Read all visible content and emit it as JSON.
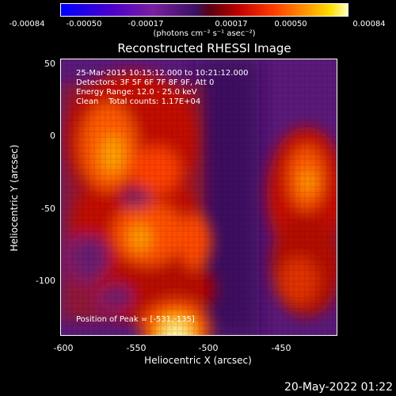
{
  "colorbar": {
    "ticks": [
      "-0.00084",
      "-0.00050",
      "-0.00017",
      "0.00017",
      "0.00050",
      "0.00084"
    ],
    "unit": "(photons cm⁻² s⁻¹ asec⁻²)"
  },
  "title": "Reconstructed RHESSI Image",
  "info": {
    "time_range": "25-Mar-2015 10:15:12.000 to 10:21:12.000",
    "detectors": "Detectors: 3F 5F 6F 7F 8F 9F, Att 0",
    "energy": "Energy Range: 12.0 - 25.0 keV",
    "clean": "Clean    Total counts: 1.17E+04"
  },
  "peak": "Position of Peak = [-531,-135]",
  "axes": {
    "xlabel": "Heliocentric X (arcsec)",
    "ylabel": "Heliocentric Y (arcsec)",
    "xticks": [
      "-600",
      "-550",
      "-500",
      "-450"
    ],
    "yticks": [
      "50",
      "0",
      "-50",
      "-100"
    ]
  },
  "timestamp": "20-May-2022 01:22",
  "colors": {
    "background": "#000000",
    "axis": "#ffffff",
    "low": "#5a1a7a",
    "high": "#ffffc0"
  }
}
